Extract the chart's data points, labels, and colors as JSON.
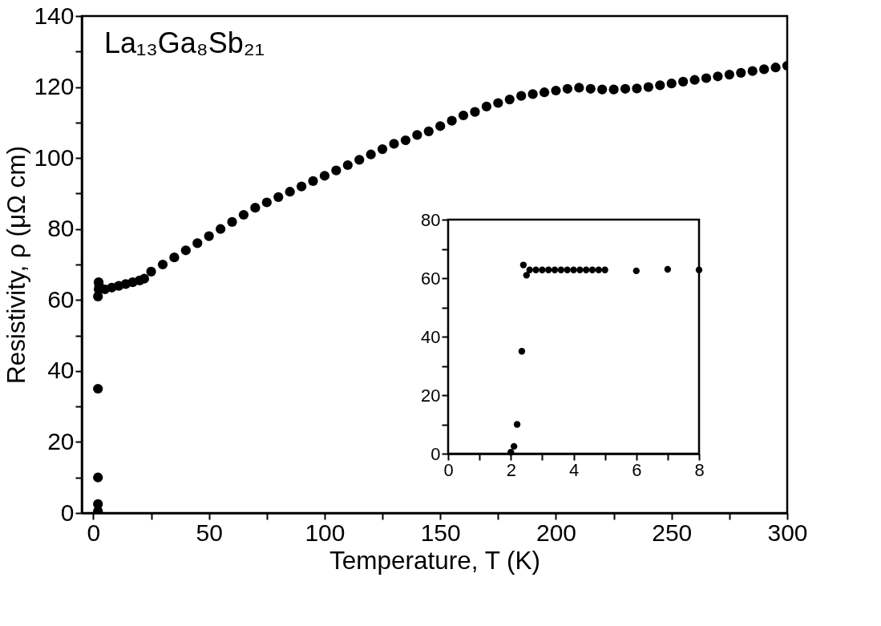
{
  "chart_data": [
    {
      "type": "scatter",
      "xlabel": "Temperature, T (K)",
      "ylabel": "Resistivity, ρ (μΩ cm)",
      "annotations": [
        "La₁₃Ga₈Sb₂₁"
      ],
      "marker": "circle",
      "grid": false,
      "series": [
        {
          "color": "#000000",
          "x": [
            2,
            2,
            2,
            2,
            2,
            2.3,
            2.3,
            2.5,
            5,
            8,
            11,
            14,
            17,
            20,
            22,
            25,
            30,
            35,
            40,
            45,
            50,
            55,
            60,
            65,
            70,
            75,
            80,
            85,
            90,
            95,
            100,
            105,
            110,
            115,
            120,
            125,
            130,
            135,
            140,
            145,
            150,
            155,
            160,
            165,
            170,
            175,
            180,
            185,
            190,
            195,
            200,
            205,
            210,
            215,
            220,
            225,
            230,
            235,
            240,
            245,
            250,
            255,
            260,
            265,
            270,
            275,
            280,
            285,
            290,
            295,
            300
          ],
          "values": [
            0.5,
            2.5,
            10,
            35,
            61,
            63,
            65,
            64,
            63,
            63.5,
            64,
            64.5,
            65,
            65.5,
            66,
            68,
            70,
            72,
            74,
            76,
            78,
            80,
            82,
            84,
            86,
            87.5,
            89,
            90.5,
            92,
            93.5,
            95,
            96.5,
            98,
            99.5,
            101,
            102.5,
            104,
            105,
            106.5,
            107.5,
            109,
            110.5,
            112,
            113,
            114.5,
            115.5,
            116.5,
            117.5,
            118,
            118.5,
            119,
            119.5,
            119.8,
            119.5,
            119.3,
            119.3,
            119.5,
            119.6,
            120,
            120.5,
            121,
            121.5,
            122,
            122.5,
            123,
            123.5,
            124,
            124.5,
            125,
            125.5,
            126
          ]
        }
      ],
      "xlim": [
        -5,
        300
      ],
      "ylim": [
        0,
        140
      ],
      "xticks": [
        0,
        {
          "value": 25,
          "label": null
        },
        50,
        {
          "value": 75,
          "label": null
        },
        100,
        {
          "value": 125,
          "label": null
        },
        150,
        {
          "value": 175,
          "label": null
        },
        200,
        {
          "value": 225,
          "label": null
        },
        250,
        {
          "value": 275,
          "label": null
        },
        300
      ],
      "yticks": [
        0,
        {
          "value": 10,
          "label": null
        },
        20,
        {
          "value": 30,
          "label": null
        },
        40,
        {
          "value": 50,
          "label": null
        },
        60,
        {
          "value": 70,
          "label": null
        },
        80,
        {
          "value": 90,
          "label": null
        },
        100,
        {
          "value": 110,
          "label": null
        },
        120,
        {
          "value": 130,
          "label": null
        },
        140
      ]
    },
    {
      "type": "scatter",
      "marker": "circle",
      "grid": false,
      "series": [
        {
          "color": "#000000",
          "x": [
            2.0,
            2.1,
            2.2,
            2.35,
            2.4,
            2.5,
            2.6,
            2.8,
            3.0,
            3.2,
            3.4,
            3.6,
            3.8,
            4.0,
            4.2,
            4.4,
            4.6,
            4.8,
            5.0,
            6,
            7,
            8
          ],
          "values": [
            0.5,
            2.5,
            10,
            35,
            64.5,
            61,
            62.8,
            62.8,
            62.8,
            62.8,
            62.8,
            62.8,
            62.8,
            62.8,
            62.8,
            62.8,
            62.8,
            62.8,
            62.8,
            62.5,
            63,
            62.8
          ]
        }
      ],
      "xlim": [
        0,
        8
      ],
      "ylim": [
        0,
        80
      ],
      "xticks": [
        0,
        {
          "value": 1,
          "label": null
        },
        2,
        {
          "value": 3,
          "label": null
        },
        4,
        {
          "value": 5,
          "label": null
        },
        6,
        {
          "value": 7,
          "label": null
        },
        8
      ],
      "yticks": [
        0,
        {
          "value": 10,
          "label": null
        },
        20,
        {
          "value": 30,
          "label": null
        },
        40,
        {
          "value": 50,
          "label": null
        },
        60,
        {
          "value": 70,
          "label": null
        },
        80
      ]
    }
  ]
}
